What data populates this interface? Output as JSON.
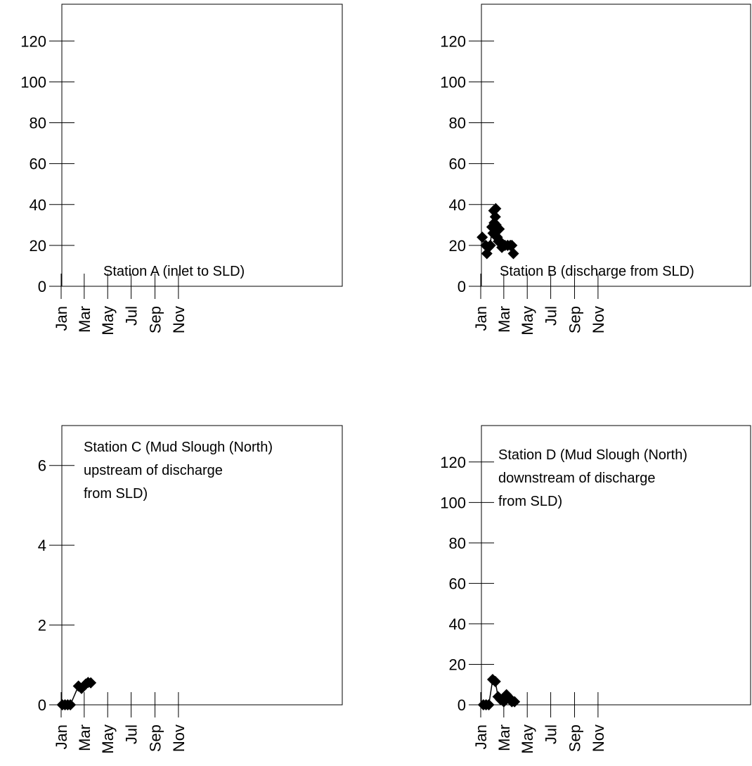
{
  "chart_data": [
    {
      "type": "line",
      "annotation": [
        "Station A (inlet to SLD)"
      ],
      "x_tick_labels": [
        "Jan",
        "Mar",
        "May",
        "Jul",
        "Sep",
        "Nov"
      ],
      "y_ticks": [
        0,
        20,
        40,
        60,
        80,
        100,
        120
      ],
      "ylim": [
        0,
        138
      ],
      "grid": false,
      "series": [
        {
          "dates": [],
          "values": []
        }
      ]
    },
    {
      "type": "line",
      "annotation": [
        "Station B (discharge from SLD)"
      ],
      "x_tick_labels": [
        "Jan",
        "Mar",
        "May",
        "Jul",
        "Sep",
        "Nov"
      ],
      "y_ticks": [
        0,
        20,
        40,
        60,
        80,
        100,
        120
      ],
      "ylim": [
        0,
        138
      ],
      "grid": false,
      "series": [
        {
          "dates": [
            "2000-01-05",
            "2000-01-14",
            "2000-01-17",
            "2000-01-21",
            "2000-01-26",
            "2000-01-30",
            "2000-02-02",
            "2000-02-04",
            "2000-02-05",
            "2000-02-07",
            "2000-02-08",
            "2000-02-09",
            "2000-02-10",
            "2000-02-11",
            "2000-02-13",
            "2000-02-16",
            "2000-02-18",
            "2000-02-20",
            "2000-02-25",
            "2000-03-04",
            "2000-03-11",
            "2000-03-18",
            "2000-03-22",
            "2000-03-26"
          ],
          "values": [
            24,
            20,
            16,
            19,
            20,
            29,
            26,
            37,
            31,
            25,
            34,
            38,
            30,
            27,
            24,
            22,
            28,
            22,
            19,
            20,
            20,
            20,
            20,
            16
          ]
        }
      ]
    },
    {
      "type": "line",
      "annotation": [
        "Station C (Mud Slough (North)",
        "upstream of discharge",
        "from SLD)"
      ],
      "x_tick_labels": [
        "Jan",
        "Mar",
        "May",
        "Jul",
        "Sep",
        "Nov"
      ],
      "y_ticks": [
        0,
        2,
        4,
        6
      ],
      "ylim": [
        0,
        7
      ],
      "grid": false,
      "series": [
        {
          "dates": [
            "2000-01-04",
            "2000-01-11",
            "2000-01-18",
            "2000-01-25",
            "2000-02-15",
            "2000-02-23",
            "2000-03-05",
            "2000-03-11",
            "2000-03-18"
          ],
          "values": [
            0,
            0,
            0,
            0,
            0.47,
            0.41,
            0.52,
            0.56,
            0.55
          ]
        }
      ]
    },
    {
      "type": "line",
      "annotation": [
        "Station D (Mud Slough (North)",
        "downstream of discharge",
        "from SLD)"
      ],
      "x_tick_labels": [
        "Jan",
        "Mar",
        "May",
        "Jul",
        "Sep",
        "Nov"
      ],
      "y_ticks": [
        0,
        20,
        40,
        60,
        80,
        100,
        120
      ],
      "ylim": [
        0,
        138
      ],
      "grid": false,
      "series": [
        {
          "dates": [
            "2000-01-08",
            "2000-01-15",
            "2000-01-22",
            "2000-02-01",
            "2000-02-08",
            "2000-02-15",
            "2000-02-22",
            "2000-03-01",
            "2000-03-08",
            "2000-03-15",
            "2000-03-22",
            "2000-03-29"
          ],
          "values": [
            0,
            0,
            0,
            12.5,
            11.5,
            4,
            2.5,
            1.5,
            5,
            3.5,
            1.5,
            1.5
          ]
        }
      ]
    }
  ]
}
